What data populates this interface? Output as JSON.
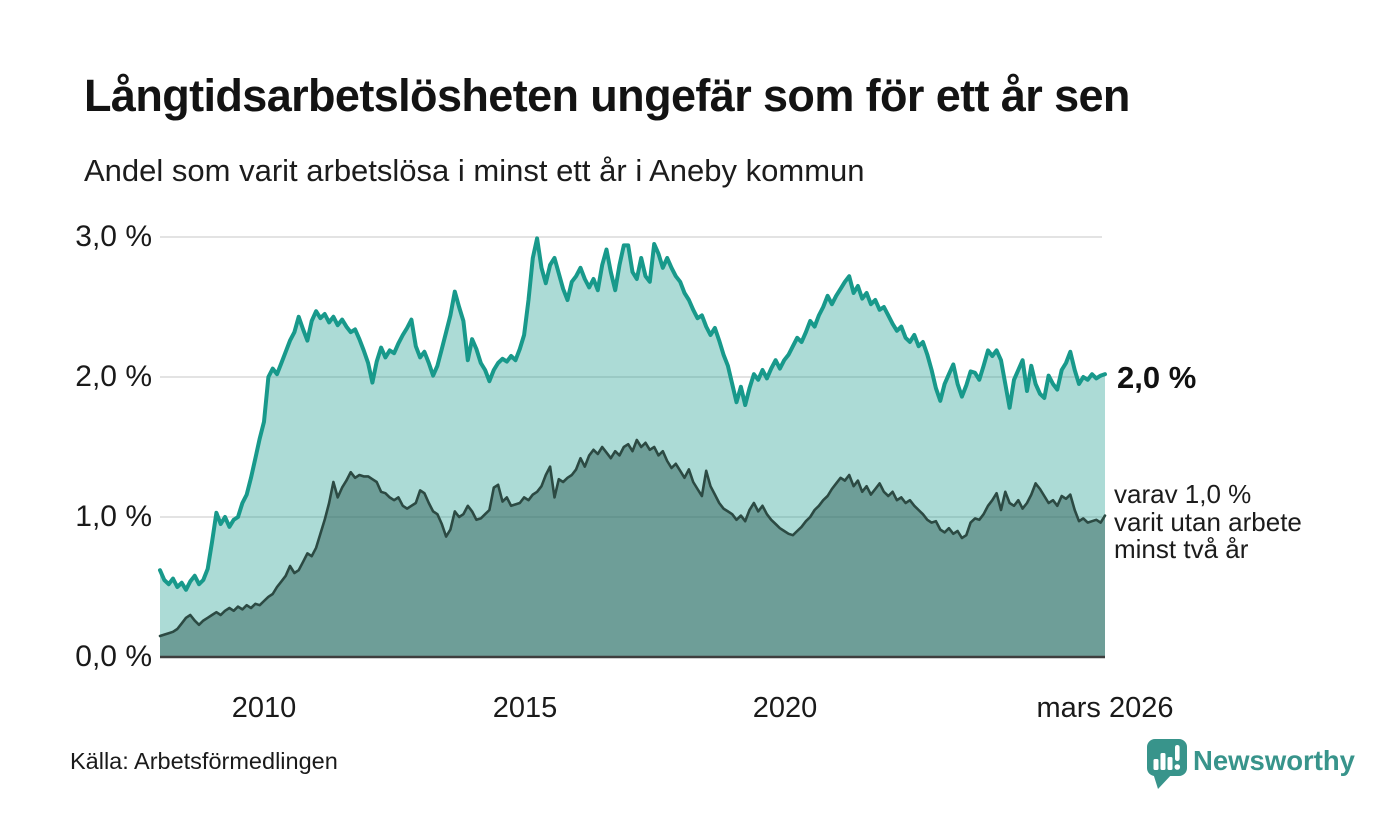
{
  "header": {
    "title": "Långtidsarbetslösheten ungefär som för ett år sen",
    "subtitle": "Andel som varit arbetslösa i minst ett år i Aneby kommun"
  },
  "chart_data": {
    "type": "area",
    "unit": "%",
    "x_interval": "monthly",
    "x_start": "2008-01",
    "x_end": "2026-03",
    "x_tick_labels": [
      "2010",
      "2015",
      "2020",
      "mars 2026"
    ],
    "y_tick_labels": [
      "0,0 %",
      "1,0 %",
      "2,0 %",
      "3,0 %"
    ],
    "ylim": [
      0,
      3.0
    ],
    "grid": true,
    "colors": {
      "total_line": "#18998b",
      "total_fill": "rgba(26,155,141,0.36)",
      "two_year_line": "#2c4a43",
      "two_year_fill": "rgba(48,97,90,0.5)",
      "gridline": "#e3e3e3",
      "axis": "#3e3e3e"
    },
    "series": [
      {
        "name": "Arbetslösa minst ett år",
        "values": [
          0.62,
          0.55,
          0.52,
          0.56,
          0.5,
          0.53,
          0.48,
          0.54,
          0.58,
          0.52,
          0.55,
          0.63,
          0.82,
          1.03,
          0.95,
          1.0,
          0.93,
          0.98,
          1.0,
          1.1,
          1.16,
          1.28,
          1.42,
          1.56,
          1.68,
          2.0,
          2.06,
          2.02,
          2.1,
          2.18,
          2.26,
          2.32,
          2.43,
          2.34,
          2.26,
          2.4,
          2.47,
          2.42,
          2.45,
          2.39,
          2.43,
          2.37,
          2.41,
          2.36,
          2.32,
          2.34,
          2.27,
          2.19,
          2.1,
          1.96,
          2.11,
          2.21,
          2.14,
          2.19,
          2.17,
          2.24,
          2.3,
          2.35,
          2.41,
          2.22,
          2.14,
          2.18,
          2.1,
          2.01,
          2.08,
          2.2,
          2.32,
          2.44,
          2.61,
          2.5,
          2.4,
          2.12,
          2.27,
          2.2,
          2.1,
          2.05,
          1.97,
          2.05,
          2.1,
          2.13,
          2.11,
          2.15,
          2.12,
          2.2,
          2.3,
          2.55,
          2.85,
          2.99,
          2.78,
          2.67,
          2.8,
          2.85,
          2.74,
          2.63,
          2.55,
          2.68,
          2.72,
          2.78,
          2.7,
          2.64,
          2.7,
          2.62,
          2.8,
          2.91,
          2.75,
          2.62,
          2.8,
          2.94,
          2.94,
          2.75,
          2.7,
          2.85,
          2.72,
          2.68,
          2.95,
          2.88,
          2.78,
          2.85,
          2.78,
          2.72,
          2.68,
          2.6,
          2.55,
          2.48,
          2.42,
          2.44,
          2.36,
          2.3,
          2.35,
          2.26,
          2.16,
          2.08,
          1.95,
          1.82,
          1.93,
          1.8,
          1.92,
          2.02,
          1.98,
          2.05,
          1.99,
          2.06,
          2.12,
          2.06,
          2.12,
          2.16,
          2.22,
          2.28,
          2.25,
          2.32,
          2.4,
          2.36,
          2.44,
          2.5,
          2.58,
          2.52,
          2.58,
          2.63,
          2.68,
          2.72,
          2.6,
          2.65,
          2.56,
          2.6,
          2.52,
          2.55,
          2.48,
          2.5,
          2.44,
          2.38,
          2.33,
          2.36,
          2.28,
          2.25,
          2.3,
          2.22,
          2.25,
          2.16,
          2.05,
          1.92,
          1.83,
          1.95,
          2.02,
          2.09,
          1.95,
          1.86,
          1.94,
          2.04,
          2.03,
          1.98,
          2.08,
          2.19,
          2.15,
          2.19,
          2.12,
          1.95,
          1.78,
          1.98,
          2.05,
          2.12,
          1.9,
          2.08,
          1.95,
          1.88,
          1.85,
          2.01,
          1.95,
          1.91,
          2.05,
          2.1,
          2.18,
          2.05,
          1.95,
          2.0,
          1.98,
          2.02,
          1.99,
          2.01,
          2.02
        ]
      },
      {
        "name": "varav utan arbete minst två år",
        "values": [
          0.15,
          0.16,
          0.17,
          0.18,
          0.2,
          0.24,
          0.28,
          0.3,
          0.26,
          0.23,
          0.26,
          0.28,
          0.3,
          0.32,
          0.3,
          0.33,
          0.35,
          0.33,
          0.36,
          0.34,
          0.37,
          0.35,
          0.38,
          0.37,
          0.4,
          0.43,
          0.45,
          0.5,
          0.54,
          0.58,
          0.65,
          0.6,
          0.62,
          0.68,
          0.74,
          0.72,
          0.78,
          0.88,
          0.98,
          1.1,
          1.25,
          1.14,
          1.21,
          1.26,
          1.32,
          1.28,
          1.3,
          1.29,
          1.29,
          1.27,
          1.25,
          1.18,
          1.17,
          1.14,
          1.12,
          1.14,
          1.08,
          1.06,
          1.08,
          1.1,
          1.19,
          1.17,
          1.1,
          1.04,
          1.02,
          0.95,
          0.86,
          0.91,
          1.04,
          1.0,
          1.02,
          1.08,
          1.04,
          0.98,
          0.99,
          1.02,
          1.05,
          1.21,
          1.23,
          1.11,
          1.14,
          1.08,
          1.09,
          1.1,
          1.14,
          1.12,
          1.16,
          1.18,
          1.22,
          1.3,
          1.36,
          1.14,
          1.27,
          1.25,
          1.28,
          1.3,
          1.34,
          1.42,
          1.36,
          1.44,
          1.48,
          1.45,
          1.5,
          1.46,
          1.42,
          1.47,
          1.44,
          1.5,
          1.52,
          1.47,
          1.55,
          1.5,
          1.53,
          1.48,
          1.5,
          1.44,
          1.47,
          1.4,
          1.35,
          1.38,
          1.33,
          1.28,
          1.34,
          1.25,
          1.2,
          1.15,
          1.33,
          1.22,
          1.16,
          1.1,
          1.06,
          1.04,
          1.02,
          0.98,
          1.01,
          0.97,
          1.05,
          1.1,
          1.04,
          1.08,
          1.02,
          0.98,
          0.95,
          0.92,
          0.9,
          0.88,
          0.87,
          0.9,
          0.93,
          0.97,
          1.0,
          1.05,
          1.08,
          1.12,
          1.15,
          1.2,
          1.24,
          1.28,
          1.26,
          1.3,
          1.22,
          1.26,
          1.18,
          1.22,
          1.16,
          1.2,
          1.24,
          1.18,
          1.15,
          1.18,
          1.12,
          1.14,
          1.1,
          1.12,
          1.08,
          1.05,
          1.02,
          0.98,
          0.96,
          0.97,
          0.91,
          0.89,
          0.92,
          0.88,
          0.9,
          0.85,
          0.87,
          0.96,
          0.99,
          0.98,
          1.02,
          1.08,
          1.12,
          1.17,
          1.05,
          1.18,
          1.1,
          1.08,
          1.12,
          1.06,
          1.1,
          1.16,
          1.24,
          1.2,
          1.15,
          1.1,
          1.12,
          1.08,
          1.15,
          1.13,
          1.16,
          1.05,
          0.97,
          0.99,
          0.96,
          0.97,
          0.98,
          0.96,
          1.01
        ]
      }
    ],
    "annotations": {
      "total_end_label": "2,0 %",
      "two_year_end_label_lines": [
        "varav 1,0 %",
        "varit utan arbete",
        "minst två år"
      ]
    }
  },
  "footer": {
    "source": "Källa: Arbetsförmedlingen",
    "brand": "Newsworthy"
  }
}
